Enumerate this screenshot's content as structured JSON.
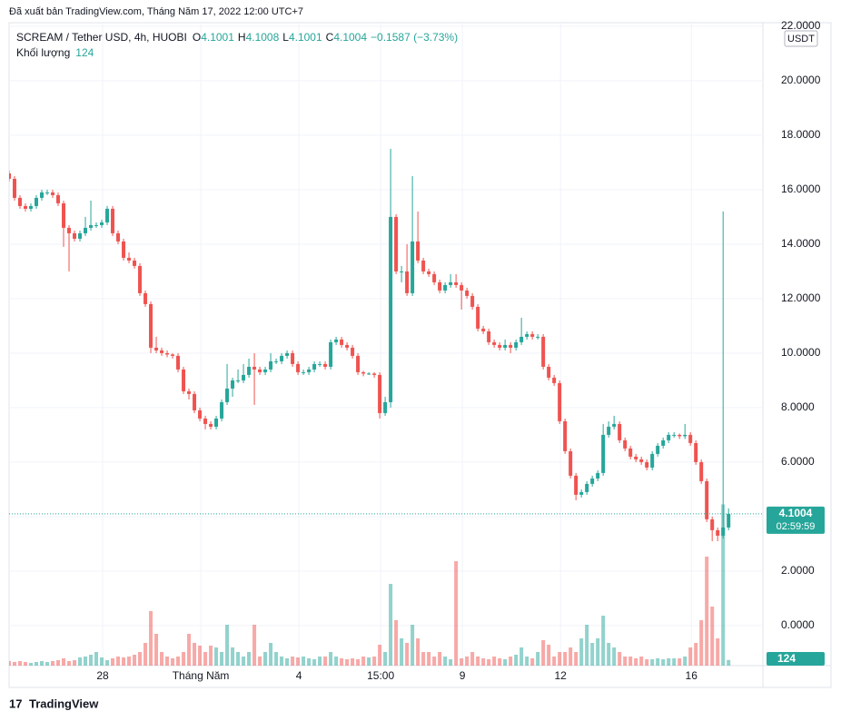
{
  "header": {
    "published": "Đã xuất bản TradingView.com, Tháng Năm 17, 2022 12:00 UTC+7"
  },
  "footer": {
    "brand": "TradingView"
  },
  "chart_data": {
    "type": "candlestick",
    "legend": {
      "symbol": "SCREAM / Tether USD, 4h, HUOBI",
      "ohlc": [
        {
          "label": "O",
          "value": "4.1001"
        },
        {
          "label": "H",
          "value": "4.1008"
        },
        {
          "label": "L",
          "value": "4.1001"
        },
        {
          "label": "C",
          "value": "4.1004"
        }
      ],
      "change": "−0.1587 (−3.73%)",
      "volume_label": "Khối lượng"
    },
    "price_unit": "USDT",
    "countdown": "02:59:59",
    "up_color": "#26a69a",
    "down_color": "#ef5350",
    "xlim": [
      0,
      138.3
    ],
    "xticks": [
      {
        "value": 17.17,
        "label": "28"
      },
      {
        "value": 35.17,
        "label": "Tháng Năm"
      },
      {
        "value": 53.17,
        "label": "4"
      },
      {
        "value": 68.17,
        "label": "15:00"
      },
      {
        "value": 83.17,
        "label": "9"
      },
      {
        "value": 101.17,
        "label": "12"
      },
      {
        "value": 125.17,
        "label": "16"
      }
    ],
    "ylim": [
      -1.47,
      22.13
    ],
    "yticks": [
      {
        "value": 0,
        "label": "0.0000"
      },
      {
        "value": 2,
        "label": "2.0000"
      },
      {
        "value": 4,
        "label": "4.0000"
      },
      {
        "value": 6,
        "label": "6.0000"
      },
      {
        "value": 8,
        "label": "8.0000"
      },
      {
        "value": 10,
        "label": "10.0000"
      },
      {
        "value": 12,
        "label": "12.0000"
      },
      {
        "value": 14,
        "label": "14.0000"
      },
      {
        "value": 16,
        "label": "16.0000"
      },
      {
        "value": 18,
        "label": "18.0000"
      },
      {
        "value": 20,
        "label": "20.0000"
      },
      {
        "value": 22,
        "label": "22.0000"
      }
    ],
    "vlim": [
      0,
      3600
    ],
    "grid": true,
    "open": [
      16.6,
      16.4,
      15.7,
      15.4,
      15.3,
      15.4,
      15.7,
      15.9,
      15.9,
      15.8,
      15.5,
      14.6,
      14.4,
      14.2,
      14.4,
      14.6,
      14.7,
      14.7,
      14.8,
      15.3,
      14.4,
      14.1,
      13.5,
      13.4,
      13.2,
      12.2,
      11.8,
      10.2,
      10.1,
      10.0,
      9.95,
      9.9,
      9.4,
      8.6,
      8.5,
      7.9,
      7.6,
      7.4,
      7.3,
      7.6,
      8.2,
      8.7,
      9.0,
      9.0,
      9.2,
      9.5,
      9.4,
      9.3,
      9.4,
      9.7,
      9.7,
      9.9,
      10.0,
      9.6,
      9.3,
      9.3,
      9.4,
      9.6,
      9.6,
      9.5,
      10.4,
      10.5,
      10.3,
      10.2,
      9.9,
      9.3,
      9.25,
      9.25,
      9.2,
      7.8,
      8.2,
      15.0,
      13.0,
      13.0,
      12.2,
      14.1,
      13.4,
      13.0,
      12.9,
      12.6,
      12.3,
      12.5,
      12.6,
      12.5,
      12.3,
      12.1,
      11.7,
      10.9,
      10.8,
      10.4,
      10.3,
      10.2,
      10.3,
      10.2,
      10.4,
      10.6,
      10.7,
      10.6,
      10.6,
      9.5,
      9.1,
      8.9,
      7.5,
      6.4,
      5.5,
      4.8,
      4.9,
      5.2,
      5.4,
      5.6,
      7.0,
      7.3,
      7.4,
      6.8,
      6.5,
      6.2,
      6.1,
      6.0,
      5.8,
      6.3,
      6.6,
      6.8,
      7.0,
      7.0,
      6.95,
      7.0,
      6.7,
      6.0,
      5.3,
      3.9,
      3.5,
      3.3,
      3.6
    ],
    "high": [
      16.7,
      16.5,
      15.8,
      15.5,
      15.5,
      15.8,
      16.0,
      16.0,
      16.0,
      15.9,
      15.6,
      14.7,
      14.5,
      14.5,
      15.0,
      15.6,
      14.8,
      14.9,
      15.4,
      15.4,
      14.5,
      14.2,
      13.7,
      13.5,
      13.3,
      12.3,
      11.9,
      10.6,
      10.2,
      10.1,
      10.0,
      10.0,
      9.5,
      8.7,
      8.6,
      8.0,
      7.7,
      7.5,
      7.7,
      8.3,
      9.6,
      9.1,
      9.4,
      9.6,
      9.8,
      10.0,
      9.5,
      9.5,
      10.0,
      9.8,
      10.0,
      10.1,
      10.1,
      9.7,
      9.4,
      9.5,
      9.7,
      9.7,
      9.7,
      10.5,
      10.6,
      10.6,
      10.4,
      10.3,
      10.0,
      9.35,
      9.3,
      9.3,
      9.3,
      8.4,
      17.5,
      15.1,
      13.2,
      14.0,
      16.5,
      15.2,
      13.5,
      13.1,
      13.0,
      12.7,
      12.6,
      12.9,
      12.9,
      12.6,
      12.4,
      12.2,
      11.8,
      11.0,
      10.9,
      10.5,
      10.4,
      10.5,
      10.4,
      10.5,
      11.3,
      10.8,
      10.8,
      10.7,
      10.7,
      9.6,
      9.2,
      9.0,
      7.6,
      6.5,
      5.6,
      5.0,
      5.3,
      5.5,
      5.7,
      7.4,
      7.5,
      7.7,
      7.5,
      6.9,
      6.6,
      6.3,
      6.2,
      6.1,
      6.4,
      6.7,
      6.9,
      7.1,
      7.1,
      7.05,
      7.4,
      7.1,
      6.8,
      6.1,
      5.4,
      4.0,
      3.6,
      15.2,
      4.3
    ],
    "low": [
      16.3,
      15.6,
      15.3,
      15.2,
      15.2,
      15.3,
      15.6,
      15.8,
      15.7,
      15.4,
      13.9,
      13.0,
      14.1,
      14.1,
      14.3,
      14.5,
      14.6,
      14.6,
      14.7,
      14.3,
      14.0,
      13.4,
      13.3,
      13.1,
      12.1,
      11.7,
      10.0,
      10.0,
      9.9,
      9.85,
      9.8,
      9.3,
      8.5,
      8.3,
      7.8,
      7.5,
      7.2,
      7.2,
      7.2,
      7.5,
      8.1,
      8.4,
      8.9,
      8.9,
      9.1,
      8.1,
      9.2,
      9.2,
      9.3,
      9.6,
      9.6,
      9.8,
      9.5,
      9.2,
      9.2,
      9.2,
      9.3,
      9.5,
      9.4,
      9.4,
      10.3,
      10.2,
      10.1,
      9.8,
      9.2,
      9.15,
      9.2,
      9.1,
      7.6,
      7.7,
      8.0,
      12.9,
      12.6,
      12.1,
      12.1,
      13.3,
      12.9,
      12.8,
      12.5,
      12.2,
      12.2,
      12.4,
      12.4,
      11.6,
      12.0,
      11.6,
      10.8,
      10.7,
      10.3,
      10.2,
      10.1,
      10.1,
      10.0,
      10.1,
      10.3,
      10.5,
      10.5,
      10.5,
      9.4,
      9.0,
      8.8,
      7.4,
      6.3,
      5.4,
      4.6,
      4.7,
      4.8,
      5.1,
      5.3,
      5.5,
      6.9,
      7.2,
      6.7,
      6.4,
      6.1,
      6.0,
      5.9,
      5.7,
      5.7,
      6.2,
      6.5,
      6.7,
      6.9,
      6.85,
      6.85,
      6.6,
      5.9,
      5.2,
      3.8,
      3.1,
      3.1,
      3.2,
      3.5
    ],
    "close": [
      16.4,
      15.7,
      15.4,
      15.3,
      15.4,
      15.7,
      15.9,
      15.9,
      15.8,
      15.5,
      14.6,
      14.4,
      14.2,
      14.4,
      14.6,
      14.7,
      14.7,
      14.8,
      15.3,
      14.4,
      14.1,
      13.5,
      13.4,
      13.2,
      12.2,
      11.8,
      10.2,
      10.1,
      10.0,
      9.95,
      9.9,
      9.4,
      8.6,
      8.5,
      7.9,
      7.6,
      7.4,
      7.3,
      7.6,
      8.2,
      8.7,
      9.0,
      9.0,
      9.2,
      9.5,
      9.4,
      9.3,
      9.4,
      9.7,
      9.7,
      9.9,
      10.0,
      9.6,
      9.3,
      9.3,
      9.4,
      9.6,
      9.6,
      9.5,
      10.4,
      10.5,
      10.3,
      10.2,
      9.9,
      9.3,
      9.25,
      9.25,
      9.2,
      7.8,
      8.2,
      15.0,
      13.0,
      13.0,
      12.2,
      14.1,
      13.4,
      13.0,
      12.9,
      12.6,
      12.3,
      12.5,
      12.6,
      12.5,
      12.3,
      12.1,
      11.7,
      10.9,
      10.8,
      10.4,
      10.3,
      10.2,
      10.3,
      10.2,
      10.4,
      10.6,
      10.7,
      10.6,
      10.6,
      9.5,
      9.1,
      8.9,
      7.5,
      6.4,
      5.5,
      4.8,
      4.9,
      5.2,
      5.4,
      5.6,
      7.0,
      7.3,
      7.4,
      6.8,
      6.5,
      6.2,
      6.1,
      6.0,
      5.8,
      6.3,
      6.6,
      6.8,
      7.0,
      7.0,
      6.95,
      7.0,
      6.7,
      6.0,
      5.3,
      3.9,
      3.5,
      3.3,
      3.6,
      4.1004
    ],
    "volume": [
      100,
      80,
      100,
      80,
      60,
      80,
      100,
      80,
      100,
      120,
      160,
      100,
      120,
      180,
      200,
      240,
      300,
      180,
      120,
      160,
      200,
      180,
      200,
      240,
      300,
      500,
      1200,
      700,
      300,
      200,
      160,
      200,
      300,
      700,
      500,
      440,
      300,
      440,
      400,
      300,
      900,
      400,
      300,
      200,
      300,
      900,
      200,
      300,
      500,
      300,
      200,
      160,
      200,
      180,
      200,
      160,
      140,
      200,
      200,
      300,
      200,
      160,
      140,
      160,
      140,
      200,
      180,
      200,
      460,
      300,
      1800,
      1000,
      600,
      500,
      900,
      600,
      300,
      300,
      200,
      300,
      200,
      140,
      2300,
      160,
      200,
      300,
      200,
      160,
      140,
      200,
      160,
      140,
      200,
      240,
      400,
      200,
      160,
      300,
      560,
      460,
      200,
      300,
      300,
      400,
      300,
      600,
      900,
      500,
      600,
      1100,
      500,
      400,
      300,
      200,
      200,
      160,
      200,
      140,
      140,
      160,
      140,
      160,
      160,
      160,
      200,
      400,
      500,
      1000,
      2400,
      1300,
      600,
      3550,
      124
    ]
  }
}
